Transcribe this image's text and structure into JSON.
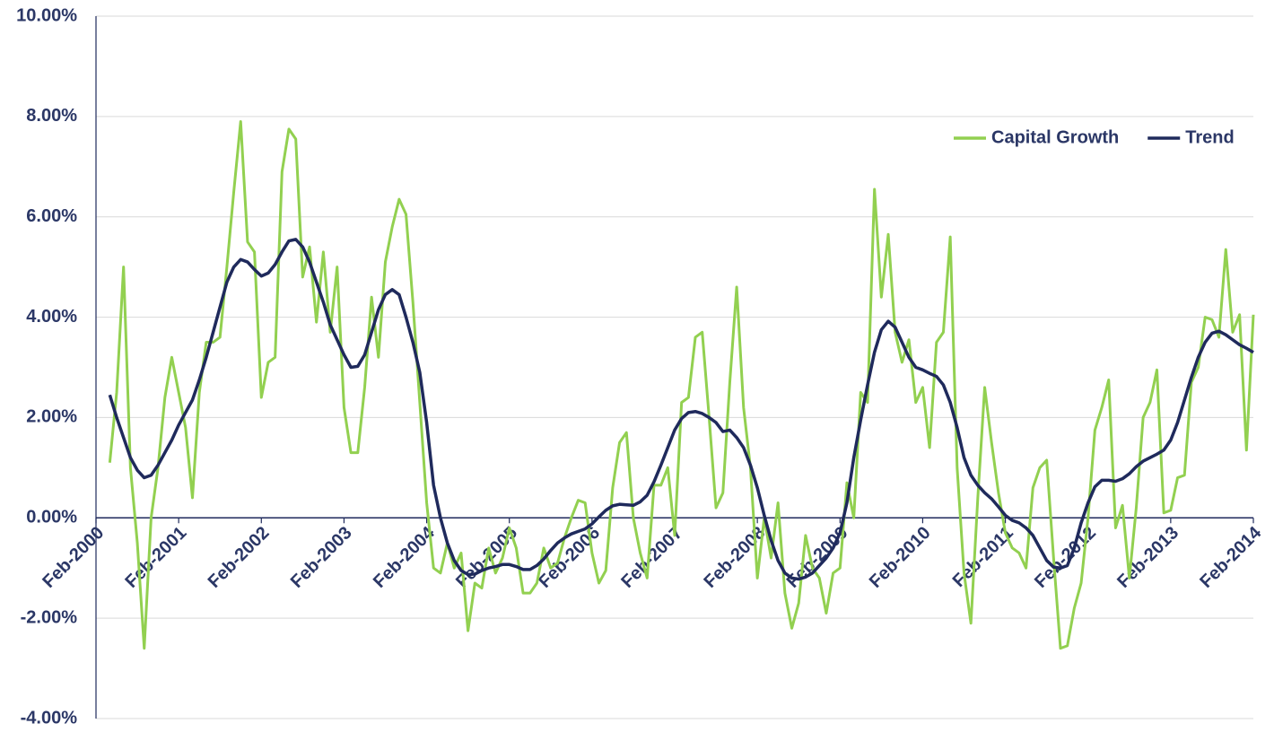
{
  "chart_data": {
    "type": "line",
    "x": [
      "Apr-2000",
      "May-2000",
      "Jun-2000",
      "Jul-2000",
      "Aug-2000",
      "Sep-2000",
      "Oct-2000",
      "Nov-2000",
      "Dec-2000",
      "Jan-2001",
      "Feb-2001",
      "Mar-2001",
      "Apr-2001",
      "May-2001",
      "Jun-2001",
      "Jul-2001",
      "Aug-2001",
      "Sep-2001",
      "Oct-2001",
      "Nov-2001",
      "Dec-2001",
      "Jan-2002",
      "Feb-2002",
      "Mar-2002",
      "Apr-2002",
      "May-2002",
      "Jun-2002",
      "Jul-2002",
      "Aug-2002",
      "Sep-2002",
      "Oct-2002",
      "Nov-2002",
      "Dec-2002",
      "Jan-2003",
      "Feb-2003",
      "Mar-2003",
      "Apr-2003",
      "May-2003",
      "Jun-2003",
      "Jul-2003",
      "Aug-2003",
      "Sep-2003",
      "Oct-2003",
      "Nov-2003",
      "Dec-2003",
      "Jan-2004",
      "Feb-2004",
      "Mar-2004",
      "Apr-2004",
      "May-2004",
      "Jun-2004",
      "Jul-2004",
      "Aug-2004",
      "Sep-2004",
      "Oct-2004",
      "Nov-2004",
      "Dec-2004",
      "Jan-2005",
      "Feb-2005",
      "Mar-2005",
      "Apr-2005",
      "May-2005",
      "Jun-2005",
      "Jul-2005",
      "Aug-2005",
      "Sep-2005",
      "Oct-2005",
      "Nov-2005",
      "Dec-2005",
      "Jan-2006",
      "Feb-2006",
      "Mar-2006",
      "Apr-2006",
      "May-2006",
      "Jun-2006",
      "Jul-2006",
      "Aug-2006",
      "Sep-2006",
      "Oct-2006",
      "Nov-2006",
      "Dec-2006",
      "Jan-2007",
      "Feb-2007",
      "Mar-2007",
      "Apr-2007",
      "May-2007",
      "Jun-2007",
      "Jul-2007",
      "Aug-2007",
      "Sep-2007",
      "Oct-2007",
      "Nov-2007",
      "Dec-2007",
      "Jan-2008",
      "Feb-2008",
      "Mar-2008",
      "Apr-2008",
      "May-2008",
      "Jun-2008",
      "Jul-2008",
      "Aug-2008",
      "Sep-2008",
      "Oct-2008",
      "Nov-2008",
      "Dec-2008",
      "Jan-2009",
      "Feb-2009",
      "Mar-2009",
      "Apr-2009",
      "May-2009",
      "Jun-2009",
      "Jul-2009",
      "Aug-2009",
      "Sep-2009",
      "Oct-2009",
      "Nov-2009",
      "Dec-2009",
      "Jan-2010",
      "Feb-2010",
      "Mar-2010",
      "Apr-2010",
      "May-2010",
      "Jun-2010",
      "Jul-2010",
      "Aug-2010",
      "Sep-2010",
      "Oct-2010",
      "Nov-2010",
      "Dec-2010",
      "Jan-2011",
      "Feb-2011",
      "Mar-2011",
      "Apr-2011",
      "May-2011",
      "Jun-2011",
      "Jul-2011",
      "Aug-2011",
      "Sep-2011",
      "Oct-2011",
      "Nov-2011",
      "Dec-2011",
      "Jan-2012",
      "Feb-2012",
      "Mar-2012",
      "Apr-2012",
      "May-2012",
      "Jun-2012",
      "Jul-2012",
      "Aug-2012",
      "Sep-2012",
      "Oct-2012",
      "Nov-2012",
      "Dec-2012",
      "Jan-2013",
      "Feb-2013",
      "Mar-2013",
      "Apr-2013",
      "May-2013",
      "Jun-2013",
      "Jul-2013",
      "Aug-2013",
      "Sep-2013",
      "Oct-2013",
      "Nov-2013",
      "Dec-2013",
      "Jan-2014",
      "Feb-2014"
    ],
    "series": [
      {
        "name": "Capital Growth",
        "color": "#92d050",
        "values": [
          1.1,
          2.5,
          5.0,
          1.0,
          -0.5,
          -2.6,
          0.0,
          1.0,
          2.4,
          3.2,
          2.5,
          1.8,
          0.4,
          2.5,
          3.5,
          3.5,
          3.6,
          5.0,
          6.5,
          7.9,
          5.5,
          5.3,
          2.4,
          3.1,
          3.2,
          6.9,
          7.75,
          7.55,
          4.8,
          5.4,
          3.9,
          5.3,
          3.7,
          5.0,
          2.2,
          1.3,
          1.3,
          2.6,
          4.4,
          3.2,
          5.1,
          5.8,
          6.35,
          6.05,
          4.3,
          2.3,
          0.3,
          -1.0,
          -1.1,
          -0.5,
          -1.0,
          -0.7,
          -2.25,
          -1.3,
          -1.4,
          -0.6,
          -1.1,
          -0.8,
          -0.2,
          -0.6,
          -1.5,
          -1.5,
          -1.3,
          -0.6,
          -1.0,
          -0.9,
          -0.4,
          0.0,
          0.35,
          0.3,
          -0.7,
          -1.3,
          -1.05,
          0.6,
          1.5,
          1.7,
          0.0,
          -0.7,
          -1.2,
          0.65,
          0.65,
          1.0,
          -0.35,
          2.3,
          2.4,
          3.6,
          3.7,
          2.0,
          0.2,
          0.5,
          2.7,
          4.6,
          2.2,
          1.0,
          -1.2,
          0.0,
          -0.8,
          0.3,
          -1.5,
          -2.2,
          -1.7,
          -0.35,
          -1.0,
          -1.2,
          -1.9,
          -1.1,
          -1.0,
          0.7,
          0.0,
          2.5,
          2.3,
          6.55,
          4.4,
          5.65,
          3.7,
          3.1,
          3.55,
          2.3,
          2.6,
          1.4,
          3.5,
          3.7,
          5.6,
          1.0,
          -1.1,
          -2.1,
          0.4,
          2.6,
          1.5,
          0.5,
          -0.3,
          -0.6,
          -0.7,
          -1.0,
          0.6,
          1.0,
          1.15,
          -0.8,
          -2.6,
          -2.55,
          -1.8,
          -1.3,
          0.0,
          1.75,
          2.2,
          2.75,
          -0.2,
          0.25,
          -1.2,
          0.2,
          2.0,
          2.3,
          2.95,
          0.1,
          0.15,
          0.8,
          0.85,
          2.7,
          3.0,
          4.0,
          3.95,
          3.6,
          5.35,
          3.7,
          4.05,
          1.35,
          4.05
        ]
      },
      {
        "name": "Trend",
        "color": "#1f2a5c",
        "values": [
          2.45,
          2.0,
          1.6,
          1.2,
          0.95,
          0.8,
          0.85,
          1.05,
          1.3,
          1.55,
          1.85,
          2.1,
          2.35,
          2.75,
          3.2,
          3.7,
          4.2,
          4.7,
          5.0,
          5.15,
          5.1,
          4.95,
          4.82,
          4.88,
          5.05,
          5.3,
          5.52,
          5.55,
          5.4,
          5.1,
          4.7,
          4.3,
          3.85,
          3.55,
          3.25,
          3.0,
          3.02,
          3.25,
          3.7,
          4.15,
          4.45,
          4.55,
          4.45,
          4.0,
          3.5,
          2.9,
          1.9,
          0.65,
          0.0,
          -0.5,
          -0.85,
          -1.05,
          -1.13,
          -1.12,
          -1.05,
          -1.0,
          -0.97,
          -0.93,
          -0.93,
          -0.97,
          -1.03,
          -1.03,
          -0.95,
          -0.82,
          -0.65,
          -0.5,
          -0.4,
          -0.32,
          -0.27,
          -0.22,
          -0.12,
          0.02,
          0.15,
          0.24,
          0.27,
          0.26,
          0.25,
          0.32,
          0.45,
          0.72,
          1.05,
          1.4,
          1.75,
          1.98,
          2.1,
          2.12,
          2.08,
          2.0,
          1.9,
          1.72,
          1.75,
          1.6,
          1.4,
          1.05,
          0.6,
          0.05,
          -0.45,
          -0.85,
          -1.1,
          -1.2,
          -1.22,
          -1.18,
          -1.1,
          -0.95,
          -0.8,
          -0.6,
          -0.3,
          0.3,
          1.2,
          1.95,
          2.65,
          3.3,
          3.75,
          3.92,
          3.8,
          3.5,
          3.2,
          3.0,
          2.95,
          2.88,
          2.82,
          2.65,
          2.3,
          1.8,
          1.2,
          0.85,
          0.65,
          0.5,
          0.38,
          0.22,
          0.05,
          -0.05,
          -0.1,
          -0.2,
          -0.35,
          -0.6,
          -0.85,
          -0.98,
          -1.0,
          -0.95,
          -0.6,
          -0.1,
          0.3,
          0.62,
          0.75,
          0.75,
          0.73,
          0.78,
          0.88,
          1.02,
          1.13,
          1.2,
          1.27,
          1.35,
          1.55,
          1.9,
          2.35,
          2.8,
          3.2,
          3.5,
          3.68,
          3.72,
          3.65,
          3.55,
          3.45,
          3.38,
          3.3
        ]
      }
    ],
    "xlim": [
      "Feb-2000",
      "Feb-2014"
    ],
    "xticks": [
      "Feb-2000",
      "Feb-2001",
      "Feb-2002",
      "Feb-2003",
      "Feb-2004",
      "Feb-2005",
      "Feb-2006",
      "Feb-2007",
      "Feb-2008",
      "Feb-2009",
      "Feb-2010",
      "Feb-2011",
      "Feb-2012",
      "Feb-2013",
      "Feb-2014"
    ],
    "ylim": [
      -4,
      10
    ],
    "yticks": [
      {
        "value": -4,
        "label": "-4.00%"
      },
      {
        "value": -2,
        "label": "-2.00%"
      },
      {
        "value": 0,
        "label": "0.00%"
      },
      {
        "value": 2,
        "label": "2.00%"
      },
      {
        "value": 4,
        "label": "4.00%"
      },
      {
        "value": 6,
        "label": "6.00%"
      },
      {
        "value": 8,
        "label": "8.00%"
      },
      {
        "value": 10,
        "label": "10.00%"
      }
    ],
    "grid": true,
    "legend": "upper right"
  }
}
